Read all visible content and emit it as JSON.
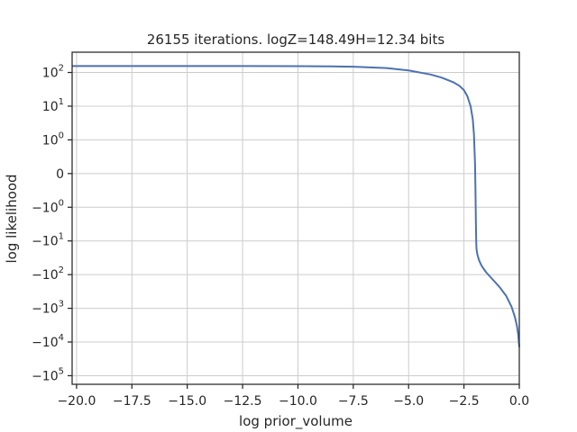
{
  "chart_data": {
    "type": "line",
    "title": "26155 iterations. logZ=148.49H=12.34 bits",
    "xlabel": "log prior_volume",
    "ylabel": "log likelihood",
    "xlim": [
      -20.2,
      0.0
    ],
    "y_scale": "symlog",
    "y_linthresh": 1,
    "ylim": [
      -180000,
      400
    ],
    "grid": true,
    "x_ticks": [
      {
        "value": -20.0,
        "label": "−20.0"
      },
      {
        "value": -17.5,
        "label": "−17.5"
      },
      {
        "value": -15.0,
        "label": "−15.0"
      },
      {
        "value": -12.5,
        "label": "−12.5"
      },
      {
        "value": -10.0,
        "label": "−10.0"
      },
      {
        "value": -7.5,
        "label": "−7.5"
      },
      {
        "value": -5.0,
        "label": "−5.0"
      },
      {
        "value": -2.5,
        "label": "−2.5"
      },
      {
        "value": 0.0,
        "label": "0.0"
      }
    ],
    "y_ticks": [
      {
        "value": 100,
        "base": "10",
        "exp": "2",
        "sign": ""
      },
      {
        "value": 10,
        "base": "10",
        "exp": "1",
        "sign": ""
      },
      {
        "value": 1,
        "base": "10",
        "exp": "0",
        "sign": ""
      },
      {
        "value": 0,
        "base": "0",
        "exp": "",
        "sign": ""
      },
      {
        "value": -1,
        "base": "10",
        "exp": "0",
        "sign": "−"
      },
      {
        "value": -10,
        "base": "10",
        "exp": "1",
        "sign": "−"
      },
      {
        "value": -100,
        "base": "10",
        "exp": "2",
        "sign": "−"
      },
      {
        "value": -1000,
        "base": "10",
        "exp": "3",
        "sign": "−"
      },
      {
        "value": -10000,
        "base": "10",
        "exp": "4",
        "sign": "−"
      },
      {
        "value": -100000,
        "base": "10",
        "exp": "5",
        "sign": "−"
      }
    ],
    "series_color": "#4c72b0",
    "series": [
      {
        "x": [
          -20.2,
          -17.5,
          -15.0,
          -12.5,
          -10.0,
          -8.5,
          -7.5,
          -6.0,
          -5.0,
          -4.0,
          -3.5,
          -3.0,
          -2.7,
          -2.5,
          -2.35,
          -2.2,
          -2.1,
          -2.05,
          -2.0,
          -1.98,
          -1.96,
          -1.95,
          -1.94,
          -1.93,
          -1.9,
          -1.85,
          -1.8,
          -1.7,
          -1.5,
          -1.2,
          -0.9,
          -0.6,
          -0.35,
          -0.2,
          -0.1,
          -0.05,
          -0.02,
          0.0
        ],
        "y": [
          155,
          155,
          155,
          155,
          154,
          152,
          148,
          135,
          115,
          87,
          70,
          52,
          40,
          30,
          20,
          10,
          4,
          1.5,
          0.3,
          -0.5,
          -3,
          -8,
          -14,
          -18,
          -24,
          -32,
          -40,
          -55,
          -85,
          -140,
          -230,
          -420,
          -900,
          -1800,
          -3500,
          -6000,
          -10000,
          -14000
        ]
      }
    ]
  }
}
